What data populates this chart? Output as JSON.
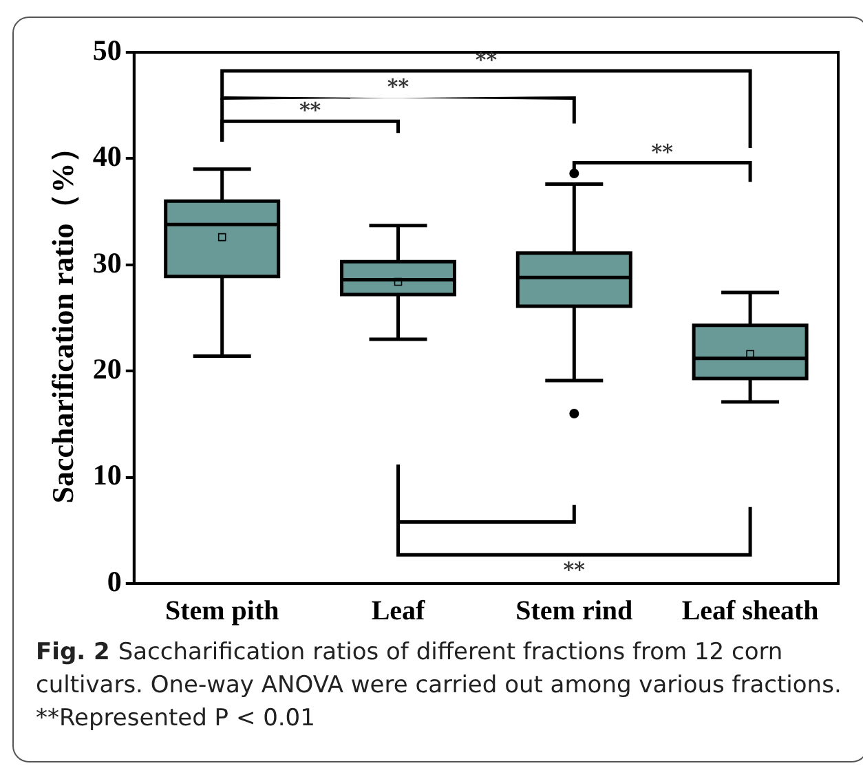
{
  "chart_data": {
    "type": "box",
    "ylabel": "Saccharification ratio（%）",
    "categories": [
      "Stem pith",
      "Leaf",
      "Stem rind",
      "Leaf sheath"
    ],
    "color": "#6a9a98",
    "boxes": [
      {
        "low": 21.4,
        "q1": 28.9,
        "median": 33.8,
        "q3": 36,
        "high": 39,
        "mean": 32.6
      },
      {
        "low": 23,
        "q1": 27.2,
        "median": 28.6,
        "q3": 30.3,
        "high": 33.7,
        "mean": 28.4
      },
      {
        "low": 19.1,
        "q1": 26.1,
        "median": 28.8,
        "q3": 31.1,
        "high": 37.6,
        "outliers": [
          38.6,
          16
        ]
      },
      {
        "low": 17.1,
        "q1": 19.3,
        "median": 21.2,
        "q3": 24.3,
        "high": 27.4,
        "mean": 21.6
      }
    ],
    "ylim": [
      0,
      50
    ],
    "yticks": [
      0,
      10,
      20,
      30,
      40,
      50
    ],
    "grid": false,
    "legend": false,
    "annotations": [
      "**",
      "**",
      "**",
      "**",
      "**",
      "Fig. 2",
      "Saccharification ratios of different fractions from 12 corn cultivars. One-way ANOVA were carried out among various fractions. **Represented P < 0.01"
    ]
  }
}
